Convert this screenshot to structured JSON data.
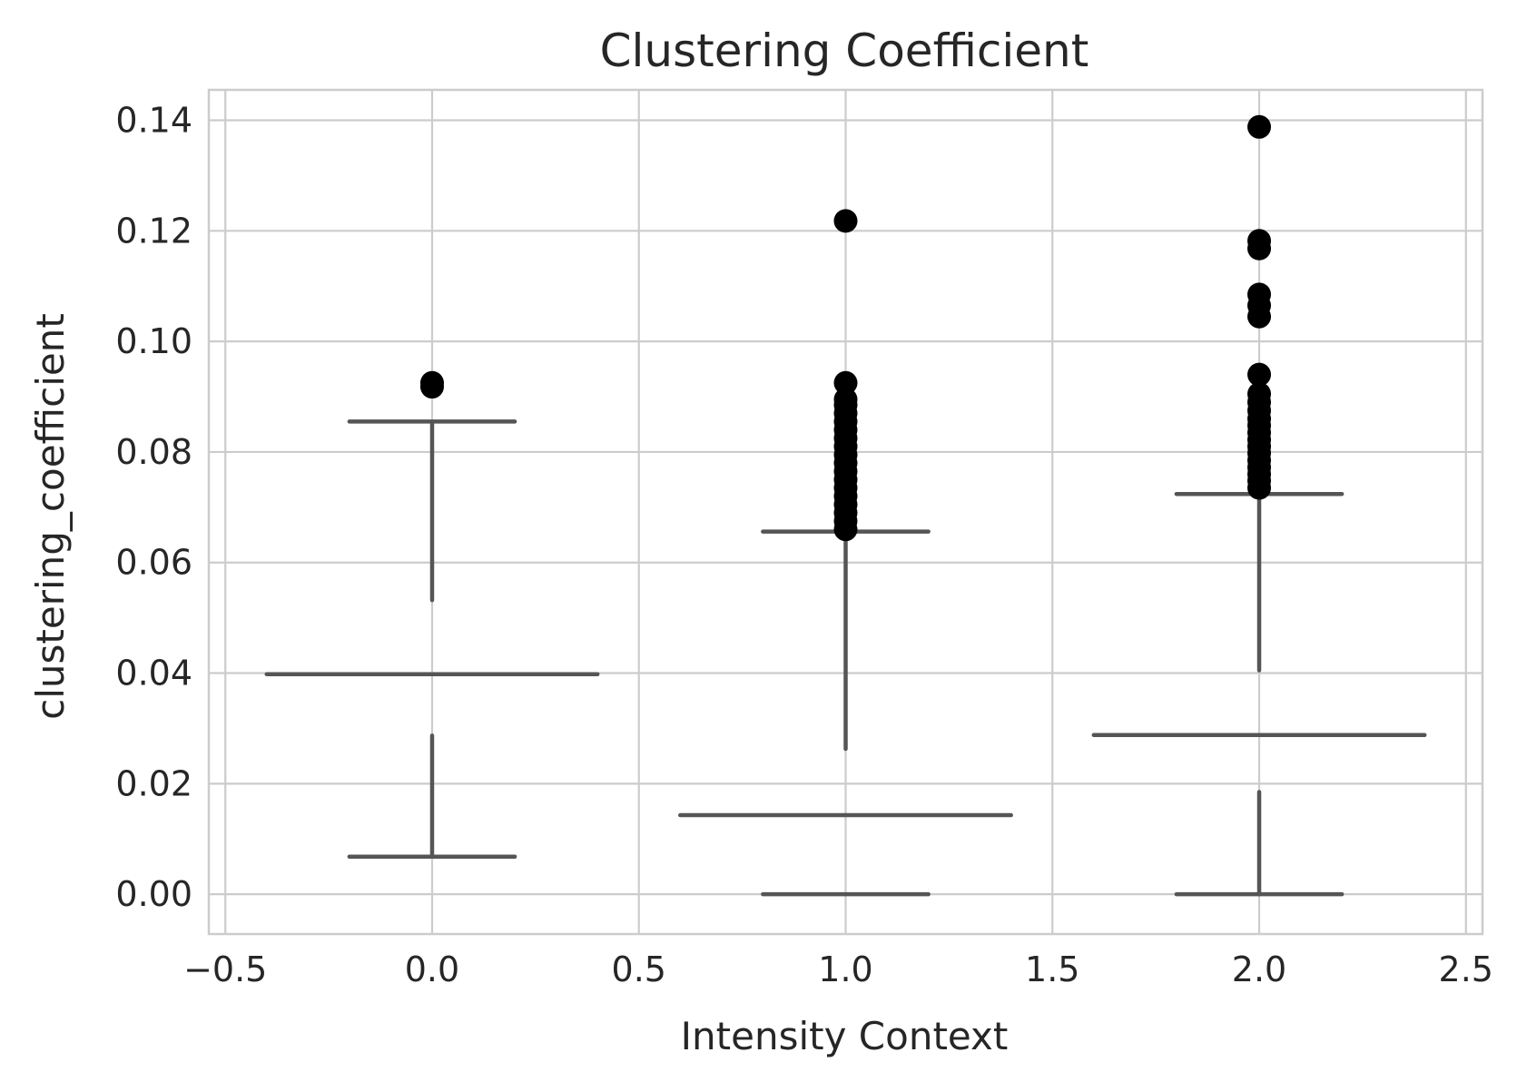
{
  "chart_data": {
    "type": "box",
    "title": "Clustering Coefficient",
    "xlabel": "Intensity Context",
    "ylabel": "clustering_coefficient",
    "xlim": [
      -0.54,
      2.54
    ],
    "ylim": [
      -0.0072,
      0.1455
    ],
    "x_ticks": [
      -0.5,
      0.0,
      0.5,
      1.0,
      1.5,
      2.0,
      2.5
    ],
    "x_tick_labels": [
      "−0.5",
      "0.0",
      "0.5",
      "1.0",
      "1.5",
      "2.0",
      "2.5"
    ],
    "y_ticks": [
      0.0,
      0.02,
      0.04,
      0.06,
      0.08,
      0.1,
      0.12,
      0.14
    ],
    "y_tick_labels": [
      "0.00",
      "0.02",
      "0.04",
      "0.06",
      "0.08",
      "0.10",
      "0.12",
      "0.14"
    ],
    "grid": true,
    "box_color": "#555555",
    "flier_color": "#000000",
    "boxes": [
      {
        "position": 0.0,
        "median": 0.0398,
        "median_halfwidth": 0.4,
        "whisker_low": 0.0068,
        "whisker_high": 0.0855,
        "cap_halfwidth": 0.2,
        "whisker_low_segment": [
          0.0068,
          0.0287
        ],
        "whisker_high_segment": [
          0.0532,
          0.0855
        ],
        "fliers": [
          0.0918,
          0.0925
        ]
      },
      {
        "position": 1.0,
        "median": 0.0143,
        "median_halfwidth": 0.4,
        "whisker_low": 0.0,
        "whisker_high": 0.0656,
        "cap_halfwidth": 0.2,
        "whisker_low_segment": null,
        "whisker_high_segment": [
          0.0263,
          0.0656
        ],
        "fliers": [
          0.066,
          0.0675,
          0.069,
          0.0705,
          0.072,
          0.0735,
          0.075,
          0.0765,
          0.078,
          0.0795,
          0.081,
          0.0825,
          0.084,
          0.0855,
          0.087,
          0.0885,
          0.0895,
          0.0925,
          0.1218
        ]
      },
      {
        "position": 2.0,
        "median": 0.0288,
        "median_halfwidth": 0.4,
        "whisker_low": 0.0,
        "whisker_high": 0.0724,
        "cap_halfwidth": 0.2,
        "whisker_low_segment": [
          0.0,
          0.0185
        ],
        "whisker_high_segment": [
          0.0405,
          0.0724
        ],
        "fliers": [
          0.0735,
          0.0748,
          0.076,
          0.0772,
          0.0785,
          0.0798,
          0.081,
          0.0822,
          0.0835,
          0.0848,
          0.086,
          0.0875,
          0.089,
          0.0905,
          0.094,
          0.1045,
          0.1065,
          0.1085,
          0.1168,
          0.1182,
          0.1388
        ]
      }
    ]
  }
}
